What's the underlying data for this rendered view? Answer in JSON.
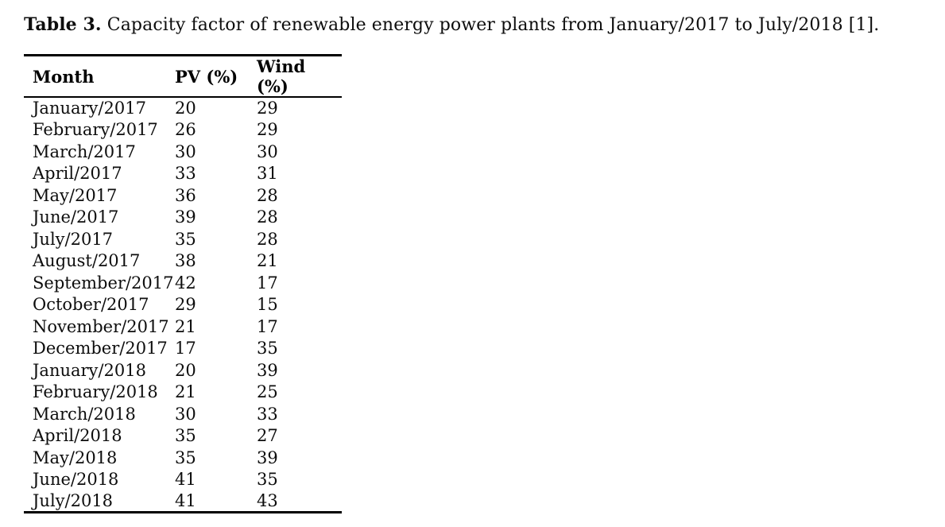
{
  "caption": {
    "label": "Table 3.",
    "text": "Capacity factor of renewable energy power plants from January/2017 to July/2018 [1]."
  },
  "table": {
    "columns": [
      "Month",
      "PV (%)",
      "Wind (%)"
    ],
    "rows": [
      [
        "January/2017",
        "20",
        "29"
      ],
      [
        "February/2017",
        "26",
        "29"
      ],
      [
        "March/2017",
        "30",
        "30"
      ],
      [
        "April/2017",
        "33",
        "31"
      ],
      [
        "May/2017",
        "36",
        "28"
      ],
      [
        "June/2017",
        "39",
        "28"
      ],
      [
        "July/2017",
        "35",
        "28"
      ],
      [
        "August/2017",
        "38",
        "21"
      ],
      [
        "September/2017",
        "42",
        "17"
      ],
      [
        "October/2017",
        "29",
        "15"
      ],
      [
        "November/2017",
        "21",
        "17"
      ],
      [
        "December/2017",
        "17",
        "35"
      ],
      [
        "January/2018",
        "20",
        "39"
      ],
      [
        "February/2018",
        "21",
        "25"
      ],
      [
        "March/2018",
        "30",
        "33"
      ],
      [
        "April/2018",
        "35",
        "27"
      ],
      [
        "May/2018",
        "35",
        "39"
      ],
      [
        "June/2018",
        "41",
        "35"
      ],
      [
        "July/2018",
        "41",
        "43"
      ]
    ]
  },
  "chart_data": {
    "type": "table",
    "title": "Table 3. Capacity factor of renewable energy power plants from January/2017 to July/2018 [1].",
    "categories": [
      "January/2017",
      "February/2017",
      "March/2017",
      "April/2017",
      "May/2017",
      "June/2017",
      "July/2017",
      "August/2017",
      "September/2017",
      "October/2017",
      "November/2017",
      "December/2017",
      "January/2018",
      "February/2018",
      "March/2018",
      "April/2018",
      "May/2018",
      "June/2018",
      "July/2018"
    ],
    "series": [
      {
        "name": "PV (%)",
        "values": [
          20,
          26,
          30,
          33,
          36,
          39,
          35,
          38,
          42,
          29,
          21,
          17,
          20,
          21,
          30,
          35,
          35,
          41,
          41
        ]
      },
      {
        "name": "Wind (%)",
        "values": [
          29,
          29,
          30,
          31,
          28,
          28,
          28,
          21,
          17,
          15,
          17,
          35,
          39,
          25,
          33,
          27,
          39,
          35,
          43
        ]
      }
    ]
  }
}
